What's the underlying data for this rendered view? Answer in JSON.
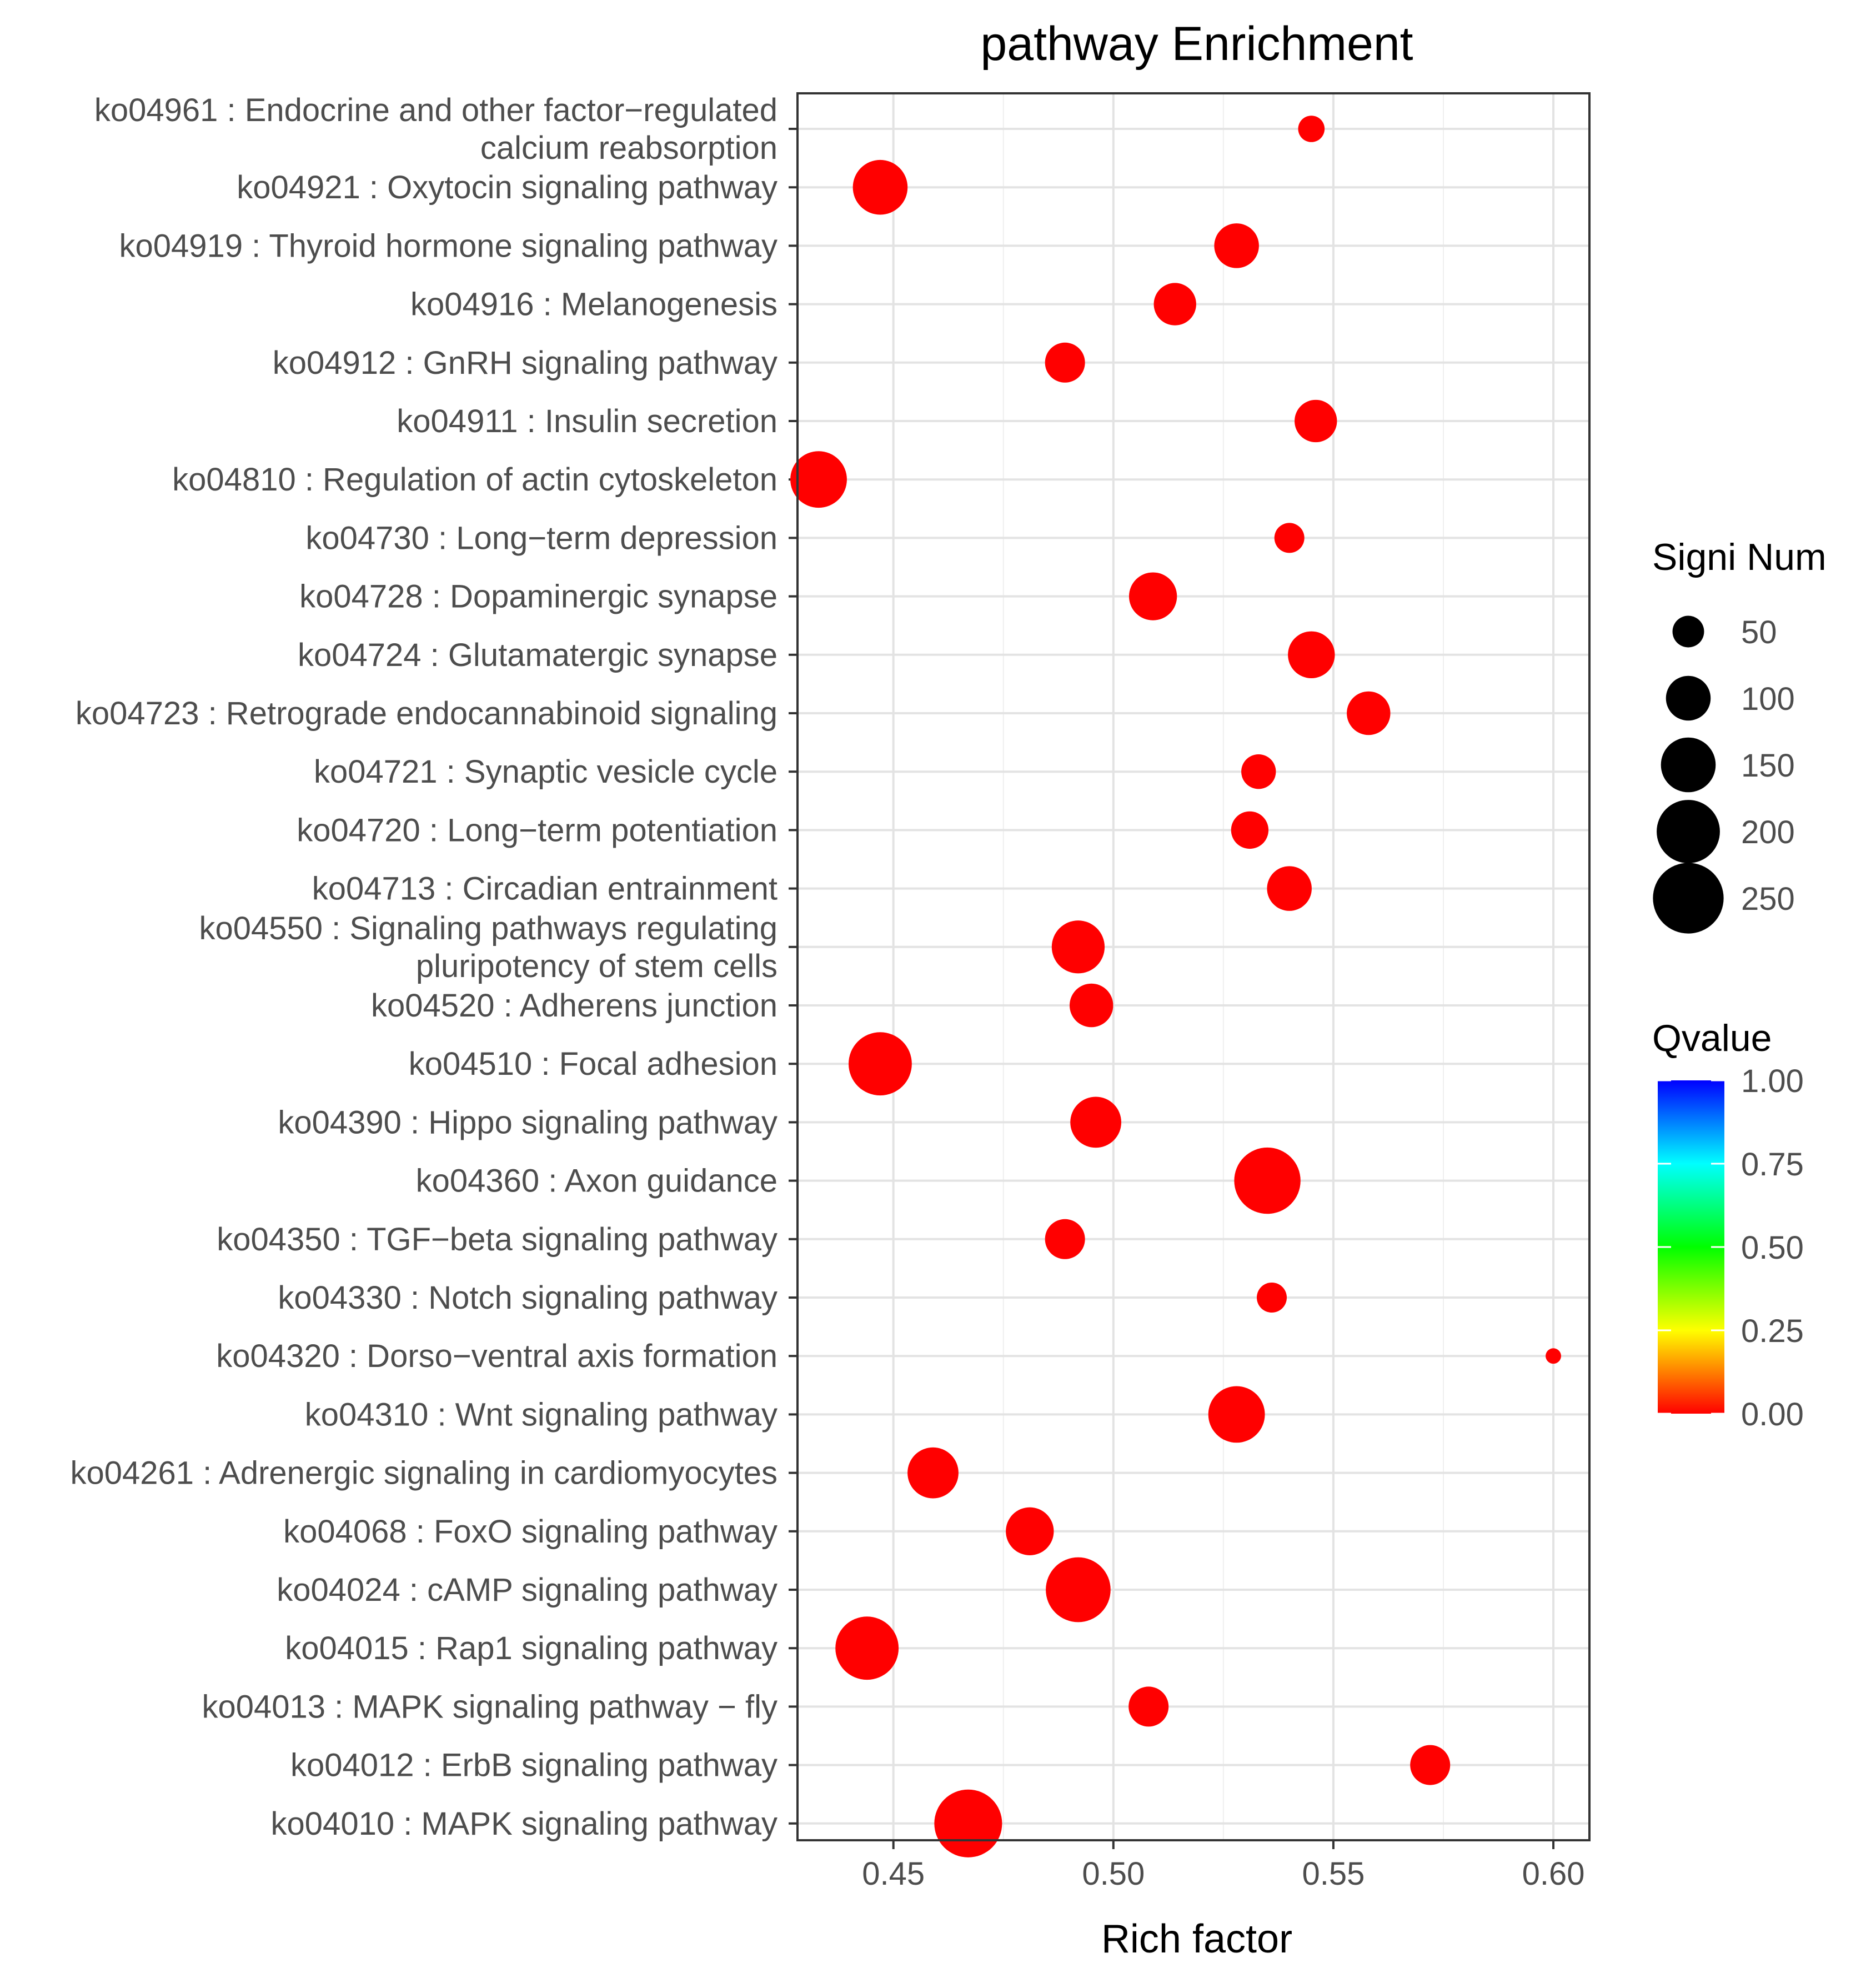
{
  "chart_data": {
    "type": "scatter",
    "title": "pathway Enrichment",
    "xlabel": "Rich factor",
    "ylabel": "",
    "xlim": [
      0.4282,
      0.6082
    ],
    "x_ticks": [
      0.45,
      0.5,
      0.55,
      0.6
    ],
    "x_tick_labels": [
      "0.45",
      "0.50",
      "0.55",
      "0.60"
    ],
    "categories": [
      {
        "label": [
          "ko04961 : Endocrine and other factor−regulated",
          "calcium reabsorption"
        ],
        "rich_factor": 0.545,
        "signi_num": 35,
        "qvalue": 0.0
      },
      {
        "label": [
          "ko04921 : Oxytocin signaling pathway"
        ],
        "rich_factor": 0.447,
        "signi_num": 150,
        "qvalue": 0.0
      },
      {
        "label": [
          "ko04919 : Thyroid hormone signaling pathway"
        ],
        "rich_factor": 0.528,
        "signi_num": 100,
        "qvalue": 0.0
      },
      {
        "label": [
          "ko04916 : Melanogenesis"
        ],
        "rich_factor": 0.514,
        "signi_num": 90,
        "qvalue": 0.0
      },
      {
        "label": [
          "ko04912 : GnRH signaling pathway"
        ],
        "rich_factor": 0.489,
        "signi_num": 80,
        "qvalue": 0.0
      },
      {
        "label": [
          "ko04911 : Insulin secretion"
        ],
        "rich_factor": 0.546,
        "signi_num": 90,
        "qvalue": 0.0
      },
      {
        "label": [
          "ko04810 : Regulation of actin cytoskeleton"
        ],
        "rich_factor": 0.433,
        "signi_num": 160,
        "qvalue": 0.0
      },
      {
        "label": [
          "ko04730 : Long−term depression"
        ],
        "rich_factor": 0.54,
        "signi_num": 45,
        "qvalue": 0.0
      },
      {
        "label": [
          "ko04728 : Dopaminergic synapse"
        ],
        "rich_factor": 0.509,
        "signi_num": 115,
        "qvalue": 0.0
      },
      {
        "label": [
          "ko04724 : Glutamatergic synapse"
        ],
        "rich_factor": 0.545,
        "signi_num": 110,
        "qvalue": 0.0
      },
      {
        "label": [
          "ko04723 : Retrograde endocannabinoid signaling"
        ],
        "rich_factor": 0.558,
        "signi_num": 95,
        "qvalue": 0.0
      },
      {
        "label": [
          "ko04721 : Synaptic vesicle cycle"
        ],
        "rich_factor": 0.533,
        "signi_num": 60,
        "qvalue": 0.0
      },
      {
        "label": [
          "ko04720 : Long−term potentiation"
        ],
        "rich_factor": 0.531,
        "signi_num": 70,
        "qvalue": 0.0
      },
      {
        "label": [
          "ko04713 : Circadian entrainment"
        ],
        "rich_factor": 0.54,
        "signi_num": 100,
        "qvalue": 0.0
      },
      {
        "label": [
          "ko04550 : Signaling pathways regulating",
          "pluripotency of stem cells"
        ],
        "rich_factor": 0.492,
        "signi_num": 140,
        "qvalue": 0.0
      },
      {
        "label": [
          "ko04520 : Adherens junction"
        ],
        "rich_factor": 0.495,
        "signi_num": 95,
        "qvalue": 0.0
      },
      {
        "label": [
          "ko04510 : Focal adhesion"
        ],
        "rich_factor": 0.447,
        "signi_num": 200,
        "qvalue": 0.0
      },
      {
        "label": [
          "ko04390 : Hippo signaling pathway"
        ],
        "rich_factor": 0.496,
        "signi_num": 130,
        "qvalue": 0.0
      },
      {
        "label": [
          "ko04360 : Axon guidance"
        ],
        "rich_factor": 0.535,
        "signi_num": 220,
        "qvalue": 0.0
      },
      {
        "label": [
          "ko04350 : TGF−beta signaling pathway"
        ],
        "rich_factor": 0.489,
        "signi_num": 80,
        "qvalue": 0.0
      },
      {
        "label": [
          "ko04330 : Notch signaling pathway"
        ],
        "rich_factor": 0.536,
        "signi_num": 45,
        "qvalue": 0.0
      },
      {
        "label": [
          "ko04320 : Dorso−ventral axis formation"
        ],
        "rich_factor": 0.6,
        "signi_num": 12,
        "qvalue": 0.0
      },
      {
        "label": [
          "ko04310 : Wnt signaling pathway"
        ],
        "rich_factor": 0.528,
        "signi_num": 160,
        "qvalue": 0.0
      },
      {
        "label": [
          "ko04261 : Adrenergic signaling in cardiomyocytes"
        ],
        "rich_factor": 0.459,
        "signi_num": 130,
        "qvalue": 0.0
      },
      {
        "label": [
          "ko04068 : FoxO signaling pathway"
        ],
        "rich_factor": 0.481,
        "signi_num": 115,
        "qvalue": 0.0
      },
      {
        "label": [
          "ko04024 : cAMP signaling pathway"
        ],
        "rich_factor": 0.492,
        "signi_num": 210,
        "qvalue": 0.0
      },
      {
        "label": [
          "ko04015 : Rap1 signaling pathway"
        ],
        "rich_factor": 0.444,
        "signi_num": 200,
        "qvalue": 0.0
      },
      {
        "label": [
          "ko04013 : MAPK signaling pathway − fly"
        ],
        "rich_factor": 0.508,
        "signi_num": 80,
        "qvalue": 0.0
      },
      {
        "label": [
          "ko04012 : ErbB signaling pathway"
        ],
        "rich_factor": 0.572,
        "signi_num": 80,
        "qvalue": 0.0
      },
      {
        "label": [
          "ko04010 : MAPK signaling pathway"
        ],
        "rich_factor": 0.467,
        "signi_num": 230,
        "qvalue": 0.0
      }
    ],
    "size_legend": {
      "title": "Signi Num",
      "values": [
        50,
        100,
        150,
        200,
        250
      ],
      "labels": [
        "50",
        "100",
        "150",
        "200",
        "250"
      ]
    },
    "color_legend": {
      "title": "Qvalue",
      "range": [
        0,
        1
      ],
      "labels": [
        "1.00",
        "0.75",
        "0.50",
        "0.25",
        "0.00"
      ],
      "stops": [
        "#ff0000",
        "#ffff00",
        "#00ff00",
        "#00ffff",
        "#0000ff"
      ]
    },
    "grid": true,
    "point_color": "#ff0000"
  }
}
